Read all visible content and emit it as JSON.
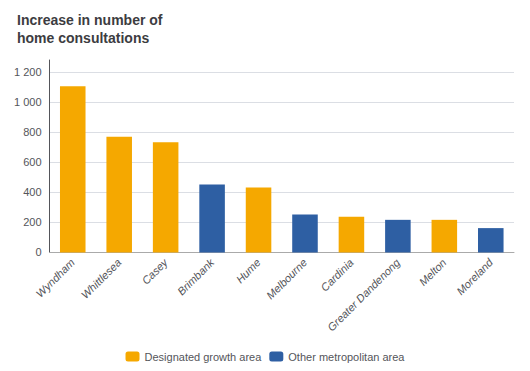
{
  "chart_data": {
    "type": "bar",
    "title": "Increase in number of\nhome consultations",
    "categories": [
      "Wyndham",
      "Whittlesea",
      "Casey",
      "Brimbank",
      "Hume",
      "Melbourne",
      "Cardinia",
      "Greater Dandenong",
      "Melton",
      "Moreland"
    ],
    "series": [
      {
        "name": "Designated growth area",
        "color": "#F5A800",
        "values": [
          1105,
          770,
          733,
          null,
          432,
          null,
          237,
          null,
          217,
          null
        ]
      },
      {
        "name": "Other metropolitan area",
        "color": "#2E5FA3",
        "values": [
          null,
          null,
          null,
          452,
          null,
          252,
          null,
          217,
          null,
          162
        ]
      }
    ],
    "ylim": [
      0,
      1280
    ],
    "yticks": [
      0,
      200,
      400,
      600,
      800,
      {
        "value": 1000,
        "label": "1 000"
      },
      {
        "value": 1200,
        "label": "1 200"
      }
    ],
    "grid": true,
    "legend": "bottom"
  }
}
